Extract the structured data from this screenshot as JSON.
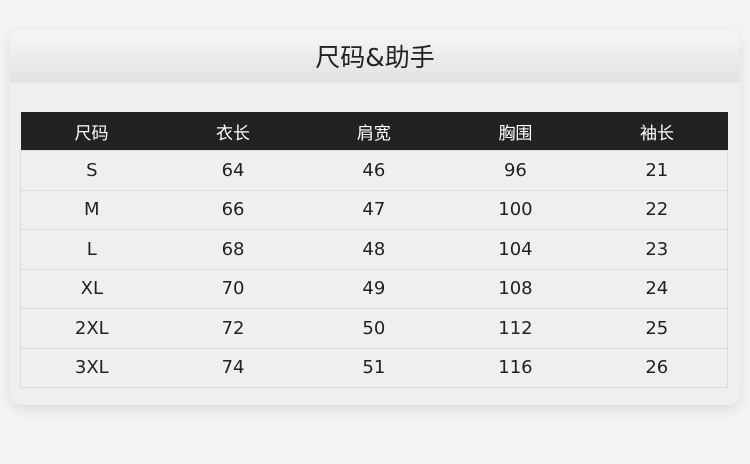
{
  "title": "尺码&助手",
  "table": {
    "headers": [
      "尺码",
      "衣长",
      "肩宽",
      "胸围",
      "袖长"
    ],
    "rows": [
      [
        "S",
        "64",
        "46",
        "96",
        "21"
      ],
      [
        "M",
        "66",
        "47",
        "100",
        "22"
      ],
      [
        "L",
        "68",
        "48",
        "104",
        "23"
      ],
      [
        "XL",
        "70",
        "49",
        "108",
        "24"
      ],
      [
        "2XL",
        "72",
        "50",
        "112",
        "25"
      ],
      [
        "3XL",
        "74",
        "51",
        "116",
        "26"
      ]
    ]
  }
}
